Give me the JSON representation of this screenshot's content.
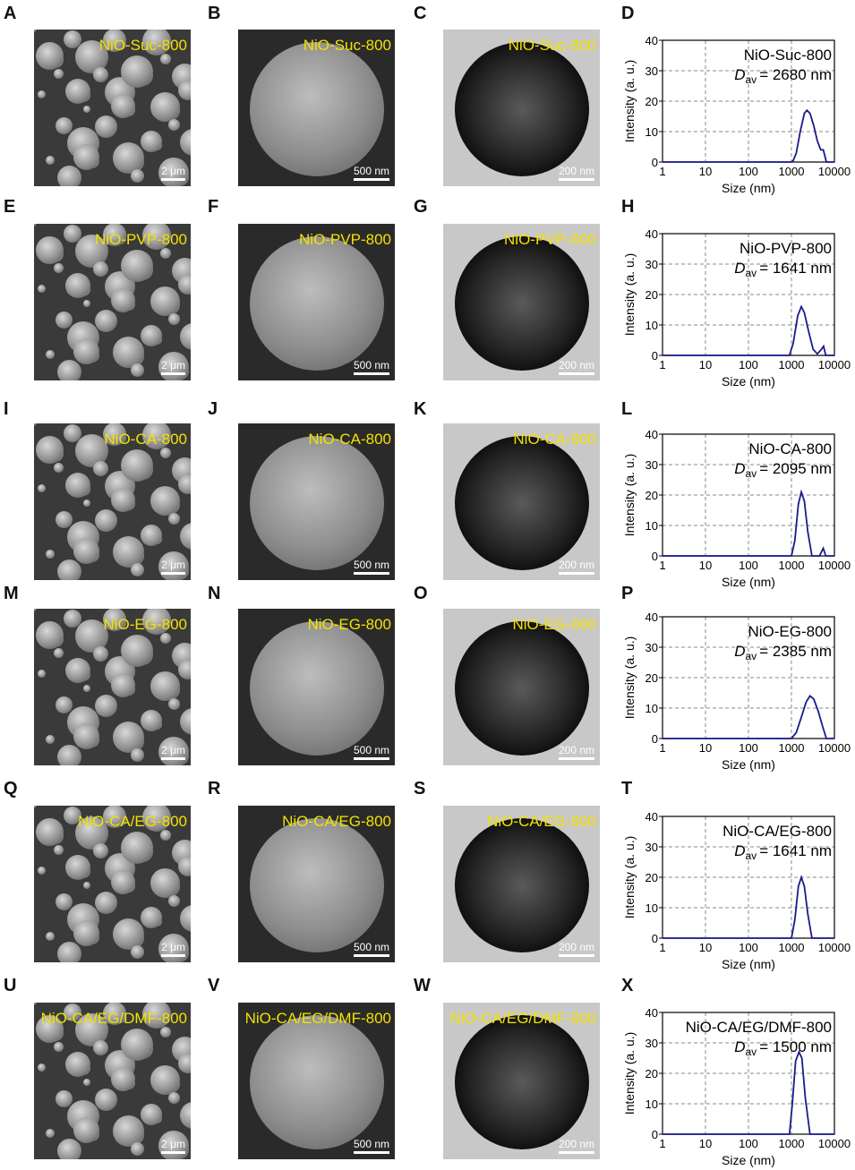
{
  "panels": [
    {
      "row": [
        "A",
        "B",
        "C",
        "D"
      ],
      "sample": "NiO-Suc-800",
      "scales": [
        "2 μm",
        "500 nm",
        "200 nm"
      ]
    },
    {
      "row": [
        "E",
        "F",
        "G",
        "H"
      ],
      "sample": "NiO-PVP-800",
      "scales": [
        "2 μm",
        "500 nm",
        "200 nm"
      ]
    },
    {
      "row": [
        "I",
        "J",
        "K",
        "L"
      ],
      "sample": "NiO-CA-800",
      "scales": [
        "2 μm",
        "500 nm",
        "200 nm"
      ]
    },
    {
      "row": [
        "M",
        "N",
        "O",
        "P"
      ],
      "sample": "NiO-EG-800",
      "scales": [
        "2 μm",
        "500 nm",
        "200 nm"
      ]
    },
    {
      "row": [
        "Q",
        "R",
        "S",
        "T"
      ],
      "sample": "NiO-CA/EG-800",
      "scales": [
        "2 μm",
        "500 nm",
        "200 nm"
      ]
    },
    {
      "row": [
        "U",
        "V",
        "W",
        "X"
      ],
      "sample": "NiO-CA/EG/DMF-800",
      "scales": [
        "2 μm",
        "500 nm",
        "200 nm"
      ]
    }
  ],
  "chart_data": [
    {
      "type": "line",
      "panel": "D",
      "title": "NiO-Suc-800",
      "annotation": "D_av = 2680 nm",
      "dav_symbol": "D",
      "dav_sub": "av",
      "dav_value": "= 2680 nm",
      "xlabel": "Size (nm)",
      "ylabel": "Intensity (a. u.)",
      "xscale": "log",
      "xlim": [
        1,
        10000
      ],
      "ylim": [
        0,
        40
      ],
      "xticks": [
        "1",
        "10",
        "100",
        "1000",
        "10000"
      ],
      "yticks": [
        "0",
        "10",
        "20",
        "30",
        "40"
      ],
      "grid": true,
      "color": "#1a1a8c",
      "x": [
        1,
        1000,
        1100,
        1300,
        1600,
        2000,
        2300,
        2700,
        3300,
        4000,
        4800,
        5500,
        6000,
        6500,
        10000
      ],
      "y": [
        0,
        0,
        0.5,
        3,
        10,
        16,
        17,
        16,
        12,
        7,
        4,
        4,
        2,
        0,
        0
      ]
    },
    {
      "type": "line",
      "panel": "H",
      "title": "NiO-PVP-800",
      "dav_symbol": "D",
      "dav_sub": "av",
      "dav_value": "= 1641 nm",
      "xlabel": "Size (nm)",
      "ylabel": "Intensity (a. u.)",
      "xscale": "log",
      "xlim": [
        1,
        10000
      ],
      "ylim": [
        0,
        40
      ],
      "xticks": [
        "1",
        "10",
        "100",
        "1000",
        "10000"
      ],
      "yticks": [
        "0",
        "10",
        "20",
        "30",
        "40"
      ],
      "grid": true,
      "color": "#1a1a8c",
      "x": [
        1,
        900,
        1100,
        1400,
        1700,
        2000,
        2500,
        3200,
        4000,
        5000,
        5600,
        6300,
        10000
      ],
      "y": [
        0,
        0,
        4,
        13,
        16,
        14,
        8,
        2,
        0.5,
        2,
        3,
        0,
        0
      ]
    },
    {
      "type": "line",
      "panel": "L",
      "title": "NiO-CA-800",
      "dav_symbol": "D",
      "dav_sub": "av",
      "dav_value": "= 2095 nm",
      "xlabel": "Size (nm)",
      "ylabel": "Intensity (a. u.)",
      "xscale": "log",
      "xlim": [
        1,
        10000
      ],
      "ylim": [
        0,
        40
      ],
      "xticks": [
        "1",
        "10",
        "100",
        "1000",
        "10000"
      ],
      "yticks": [
        "0",
        "10",
        "20",
        "30",
        "40"
      ],
      "grid": true,
      "color": "#1a1a8c",
      "x": [
        1,
        1000,
        1200,
        1450,
        1700,
        2000,
        2400,
        3000,
        4500,
        5500,
        6300,
        10000
      ],
      "y": [
        0,
        0,
        5,
        17,
        21,
        18,
        8,
        0,
        0,
        2.5,
        0,
        0
      ]
    },
    {
      "type": "line",
      "panel": "P",
      "title": "NiO-EG-800",
      "dav_symbol": "D",
      "dav_sub": "av",
      "dav_value": "= 2385 nm",
      "xlabel": "Size (nm)",
      "ylabel": "Intensity (a. u.)",
      "xscale": "log",
      "xlim": [
        1,
        10000
      ],
      "ylim": [
        0,
        40
      ],
      "xticks": [
        "1",
        "10",
        "100",
        "1000",
        "10000"
      ],
      "yticks": [
        "0",
        "10",
        "20",
        "30",
        "40"
      ],
      "grid": true,
      "color": "#1a1a8c",
      "x": [
        1,
        1000,
        1300,
        1700,
        2200,
        2700,
        3300,
        4200,
        5300,
        6500,
        10000
      ],
      "y": [
        0,
        0,
        2,
        7,
        12,
        14,
        13,
        9,
        4,
        0,
        0
      ]
    },
    {
      "type": "line",
      "panel": "T",
      "title": "NiO-CA/EG-800",
      "dav_symbol": "D",
      "dav_sub": "av",
      "dav_value": "= 1641 nm",
      "xlabel": "Size (nm)",
      "ylabel": "Intensity (a. u.)",
      "xscale": "log",
      "xlim": [
        1,
        10000
      ],
      "ylim": [
        0,
        40
      ],
      "xticks": [
        "1",
        "10",
        "100",
        "1000",
        "10000"
      ],
      "yticks": [
        "0",
        "10",
        "20",
        "30",
        "40"
      ],
      "grid": true,
      "color": "#1a1a8c",
      "x": [
        1,
        1000,
        1200,
        1450,
        1700,
        2000,
        2400,
        3000,
        10000
      ],
      "y": [
        0,
        0,
        6,
        17,
        20,
        17,
        8,
        0,
        0
      ]
    },
    {
      "type": "line",
      "panel": "X",
      "title": "NiO-CA/EG/DMF-800",
      "dav_symbol": "D",
      "dav_sub": "av",
      "dav_value": "= 1500 nm",
      "xlabel": "Size (nm)",
      "ylabel": "Intensity (a. u.)",
      "xscale": "log",
      "xlim": [
        1,
        10000
      ],
      "ylim": [
        0,
        40
      ],
      "xticks": [
        "1",
        "10",
        "100",
        "1000",
        "10000"
      ],
      "yticks": [
        "0",
        "10",
        "20",
        "30",
        "40"
      ],
      "grid": true,
      "color": "#1a1a8c",
      "x": [
        1,
        900,
        1050,
        1250,
        1500,
        1750,
        2100,
        2700,
        10000
      ],
      "y": [
        0,
        0,
        10,
        24,
        27,
        25,
        12,
        0,
        0
      ]
    }
  ]
}
